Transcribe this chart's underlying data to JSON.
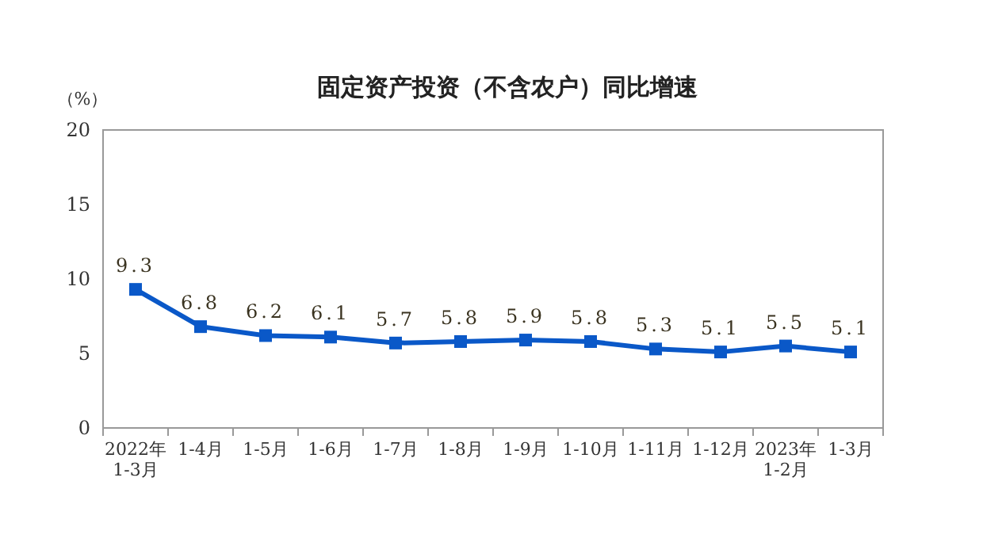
{
  "chart_data": {
    "type": "line",
    "title": "固定资产投资（不含农户）同比增速",
    "ylabel": "（%）",
    "categories": [
      "2022年\n1-3月",
      "1-4月",
      "1-5月",
      "1-6月",
      "1-7月",
      "1-8月",
      "1-9月",
      "1-10月",
      "1-11月",
      "1-12月",
      "2023年\n1-2月",
      "1-3月"
    ],
    "series": [
      {
        "color": "#0a58c8",
        "values": [
          9.3,
          6.8,
          6.2,
          6.1,
          5.7,
          5.8,
          5.9,
          5.8,
          5.3,
          5.1,
          5.5,
          5.1
        ]
      }
    ],
    "ylim": [
      0,
      20
    ],
    "yticks": [
      0,
      5,
      10,
      15,
      20
    ],
    "data_labels": true,
    "marker": "square",
    "line_style": "solid",
    "grid": false
  }
}
